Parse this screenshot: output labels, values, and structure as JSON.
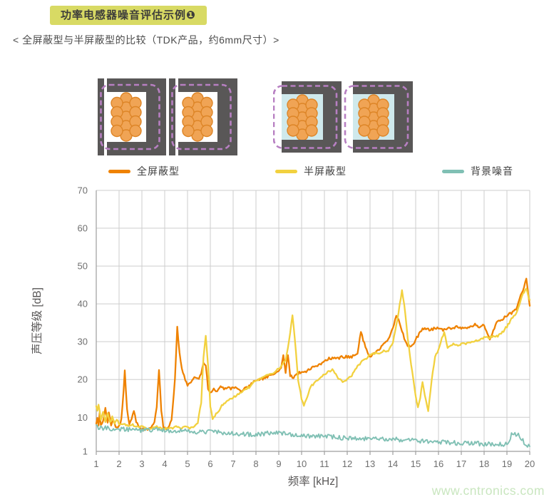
{
  "header": {
    "title": "功率电感器噪音评估示例❶",
    "subtitle": "< 全屏蔽型与半屏蔽型的比较（TDK产品，约6mm尺寸）>"
  },
  "colors": {
    "badge_bg": "#d8da64",
    "grid": "#cdcdcd",
    "axis": "#9e9e9e",
    "tick_text": "#6f6f6f",
    "axis_title_text": "#595757",
    "watermark": "#c9e6bf"
  },
  "diagram": {
    "core": "#595757",
    "coil_fill": "#f0a455",
    "coil_stroke": "#dd8527",
    "outline": "#b77fc2",
    "resin": "#cfe9ec"
  },
  "legend": {
    "items": [
      {
        "label": "全屏蔽型",
        "color": "#ef8200"
      },
      {
        "label": "半屏蔽型",
        "color": "#f2d13f"
      },
      {
        "label": "背景噪音",
        "color": "#80c0b4"
      }
    ]
  },
  "watermark": {
    "text": "www.cntronics.com"
  },
  "chart_data": {
    "type": "line",
    "title": "",
    "xlabel": "频率 [kHz]",
    "ylabel": "声压等级 [dB]",
    "xlim": [
      1,
      20
    ],
    "ylim": [
      1,
      70
    ],
    "x_ticks": [
      1,
      2,
      3,
      4,
      5,
      6,
      7,
      8,
      9,
      10,
      11,
      12,
      13,
      14,
      15,
      16,
      17,
      18,
      19,
      20
    ],
    "y_ticks": [
      1,
      10,
      20,
      30,
      40,
      50,
      60,
      70
    ],
    "grid": true,
    "legend_position": "top",
    "series": [
      {
        "name": "全屏蔽型",
        "color": "#ef8200",
        "width": 2.3,
        "jitter": 0.35,
        "points": [
          [
            1,
            8.5
          ],
          [
            1.05,
            9.5
          ],
          [
            1.1,
            8
          ],
          [
            1.15,
            11
          ],
          [
            1.2,
            8
          ],
          [
            1.3,
            9
          ],
          [
            1.4,
            12.5
          ],
          [
            1.5,
            8.5
          ],
          [
            1.55,
            11.5
          ],
          [
            1.65,
            8
          ],
          [
            1.75,
            9.5
          ],
          [
            1.85,
            7.5
          ],
          [
            2,
            7.5
          ],
          [
            2.1,
            9.5
          ],
          [
            2.2,
            17
          ],
          [
            2.25,
            22.5
          ],
          [
            2.35,
            12
          ],
          [
            2.45,
            8
          ],
          [
            2.55,
            9.5
          ],
          [
            2.65,
            12
          ],
          [
            2.75,
            8.5
          ],
          [
            2.9,
            7.5
          ],
          [
            3,
            7
          ],
          [
            3.2,
            6.8
          ],
          [
            3.4,
            7.5
          ],
          [
            3.55,
            9
          ],
          [
            3.65,
            13
          ],
          [
            3.75,
            22.5
          ],
          [
            3.85,
            12
          ],
          [
            3.95,
            7
          ],
          [
            4.1,
            7
          ],
          [
            4.3,
            9
          ],
          [
            4.45,
            20
          ],
          [
            4.55,
            34
          ],
          [
            4.65,
            27
          ],
          [
            4.75,
            23
          ],
          [
            4.85,
            21
          ],
          [
            5,
            18.5
          ],
          [
            5.15,
            19.5
          ],
          [
            5.3,
            20.5
          ],
          [
            5.45,
            20
          ],
          [
            5.6,
            21.5
          ],
          [
            5.7,
            24.5
          ],
          [
            5.8,
            24
          ],
          [
            5.9,
            17.5
          ],
          [
            6,
            16.5
          ],
          [
            6.15,
            17.5
          ],
          [
            6.3,
            17
          ],
          [
            6.45,
            18
          ],
          [
            6.6,
            17.5
          ],
          [
            6.75,
            18
          ],
          [
            6.9,
            17.5
          ],
          [
            7.05,
            18
          ],
          [
            7.2,
            17.5
          ],
          [
            7.35,
            17
          ],
          [
            7.5,
            17.5
          ],
          [
            7.65,
            18
          ],
          [
            7.8,
            19
          ],
          [
            8,
            19.5
          ],
          [
            8.2,
            20
          ],
          [
            8.4,
            20.5
          ],
          [
            8.6,
            21
          ],
          [
            8.8,
            21.5
          ],
          [
            9,
            22.5
          ],
          [
            9.1,
            23
          ],
          [
            9.2,
            26.5
          ],
          [
            9.3,
            22
          ],
          [
            9.4,
            26.5
          ],
          [
            9.5,
            21
          ],
          [
            9.65,
            20.5
          ],
          [
            9.8,
            21.5
          ],
          [
            10,
            22
          ],
          [
            10.2,
            22
          ],
          [
            10.4,
            23
          ],
          [
            10.6,
            23.5
          ],
          [
            10.8,
            24
          ],
          [
            11,
            25
          ],
          [
            11.2,
            25.5
          ],
          [
            11.4,
            25.5
          ],
          [
            11.6,
            25.5
          ],
          [
            11.8,
            26
          ],
          [
            12,
            26
          ],
          [
            12.2,
            26
          ],
          [
            12.45,
            27
          ],
          [
            12.6,
            32.5
          ],
          [
            12.75,
            29.5
          ],
          [
            12.9,
            27
          ],
          [
            13.05,
            26
          ],
          [
            13.2,
            27
          ],
          [
            13.4,
            28
          ],
          [
            13.6,
            29.5
          ],
          [
            13.8,
            30.5
          ],
          [
            14,
            33.5
          ],
          [
            14.15,
            37
          ],
          [
            14.3,
            35
          ],
          [
            14.5,
            31
          ],
          [
            14.65,
            29
          ],
          [
            14.8,
            28.5
          ],
          [
            15,
            30.5
          ],
          [
            15.2,
            32.5
          ],
          [
            15.35,
            33.5
          ],
          [
            15.5,
            33.5
          ],
          [
            15.65,
            33
          ],
          [
            15.8,
            33.5
          ],
          [
            16,
            33.5
          ],
          [
            16.2,
            33
          ],
          [
            16.4,
            33.5
          ],
          [
            16.6,
            33.5
          ],
          [
            16.8,
            34
          ],
          [
            17,
            33.5
          ],
          [
            17.2,
            33.5
          ],
          [
            17.4,
            34
          ],
          [
            17.6,
            34.5
          ],
          [
            17.8,
            34
          ],
          [
            18,
            34.5
          ],
          [
            18.25,
            30.5
          ],
          [
            18.45,
            33.5
          ],
          [
            18.6,
            35.5
          ],
          [
            18.8,
            36
          ],
          [
            19,
            37
          ],
          [
            19.2,
            37.5
          ],
          [
            19.4,
            38.5
          ],
          [
            19.6,
            42
          ],
          [
            19.8,
            45.5
          ],
          [
            19.85,
            46.5
          ],
          [
            20,
            39.5
          ]
        ]
      },
      {
        "name": "半屏蔽型",
        "color": "#f2d13f",
        "width": 2.3,
        "jitter": 0.3,
        "points": [
          [
            1,
            13
          ],
          [
            1.05,
            11.5
          ],
          [
            1.1,
            13.5
          ],
          [
            1.2,
            9.5
          ],
          [
            1.3,
            11.5
          ],
          [
            1.4,
            9
          ],
          [
            1.5,
            11
          ],
          [
            1.6,
            8.5
          ],
          [
            1.7,
            10
          ],
          [
            1.8,
            8.5
          ],
          [
            1.9,
            9.5
          ],
          [
            2,
            8
          ],
          [
            2.2,
            8.5
          ],
          [
            2.4,
            7.5
          ],
          [
            2.6,
            8
          ],
          [
            2.8,
            7.5
          ],
          [
            3,
            7.5
          ],
          [
            3.3,
            7
          ],
          [
            3.6,
            7.5
          ],
          [
            3.9,
            7
          ],
          [
            4.2,
            7
          ],
          [
            4.5,
            7.5
          ],
          [
            4.7,
            7
          ],
          [
            4.9,
            7.5
          ],
          [
            5.1,
            7
          ],
          [
            5.3,
            7.5
          ],
          [
            5.45,
            8.5
          ],
          [
            5.6,
            14
          ],
          [
            5.7,
            26
          ],
          [
            5.8,
            31.5
          ],
          [
            5.9,
            24
          ],
          [
            6,
            13
          ],
          [
            6.1,
            9.5
          ],
          [
            6.2,
            10.5
          ],
          [
            6.35,
            11.5
          ],
          [
            6.5,
            13
          ],
          [
            6.7,
            14
          ],
          [
            6.9,
            15
          ],
          [
            7.1,
            15.5
          ],
          [
            7.3,
            16.5
          ],
          [
            7.5,
            17.5
          ],
          [
            7.7,
            18
          ],
          [
            7.9,
            19.5
          ],
          [
            8.1,
            20
          ],
          [
            8.3,
            20.5
          ],
          [
            8.5,
            21
          ],
          [
            8.7,
            21.5
          ],
          [
            8.9,
            22.5
          ],
          [
            9.1,
            23.5
          ],
          [
            9.3,
            25
          ],
          [
            9.45,
            30
          ],
          [
            9.6,
            37
          ],
          [
            9.7,
            31
          ],
          [
            9.85,
            20
          ],
          [
            10,
            15
          ],
          [
            10.1,
            13
          ],
          [
            10.25,
            15.5
          ],
          [
            10.4,
            18
          ],
          [
            10.6,
            19.5
          ],
          [
            10.8,
            20.5
          ],
          [
            11,
            21.5
          ],
          [
            11.2,
            22
          ],
          [
            11.35,
            22.5
          ],
          [
            11.5,
            21.5
          ],
          [
            11.65,
            20
          ],
          [
            11.8,
            19.5
          ],
          [
            12,
            20
          ],
          [
            12.2,
            21
          ],
          [
            12.4,
            23
          ],
          [
            12.6,
            24.5
          ],
          [
            12.8,
            25.5
          ],
          [
            13,
            26.5
          ],
          [
            13.2,
            27
          ],
          [
            13.4,
            27
          ],
          [
            13.6,
            27.5
          ],
          [
            13.8,
            27.5
          ],
          [
            14,
            29.5
          ],
          [
            14.2,
            36
          ],
          [
            14.4,
            43.5
          ],
          [
            14.5,
            40
          ],
          [
            14.65,
            31
          ],
          [
            14.8,
            24
          ],
          [
            15,
            15.5
          ],
          [
            15.1,
            12.5
          ],
          [
            15.2,
            15
          ],
          [
            15.3,
            19.5
          ],
          [
            15.4,
            16
          ],
          [
            15.55,
            11.5
          ],
          [
            15.7,
            20
          ],
          [
            15.85,
            26
          ],
          [
            16,
            28
          ],
          [
            16.15,
            31
          ],
          [
            16.25,
            32.5
          ],
          [
            16.4,
            28.5
          ],
          [
            16.55,
            29
          ],
          [
            16.7,
            29.5
          ],
          [
            16.85,
            29
          ],
          [
            17,
            29.5
          ],
          [
            17.2,
            29.5
          ],
          [
            17.4,
            30
          ],
          [
            17.6,
            30
          ],
          [
            17.8,
            30.5
          ],
          [
            18,
            31
          ],
          [
            18.2,
            31
          ],
          [
            18.4,
            31.5
          ],
          [
            18.6,
            31.5
          ],
          [
            18.8,
            32.5
          ],
          [
            19,
            34
          ],
          [
            19.2,
            36
          ],
          [
            19.4,
            37.5
          ],
          [
            19.55,
            40
          ],
          [
            19.7,
            42.5
          ],
          [
            19.85,
            44
          ],
          [
            20,
            41
          ]
        ]
      },
      {
        "name": "背景噪音",
        "color": "#80c0b4",
        "width": 1.9,
        "jitter": 0.6,
        "points": [
          [
            1,
            7.5
          ],
          [
            1.3,
            7.2
          ],
          [
            1.6,
            7
          ],
          [
            2,
            7
          ],
          [
            2.4,
            6.8
          ],
          [
            2.8,
            6.6
          ],
          [
            3.2,
            6.6
          ],
          [
            3.6,
            6.8
          ],
          [
            4,
            6.5
          ],
          [
            4.4,
            6.3
          ],
          [
            4.8,
            6.4
          ],
          [
            5.2,
            6.2
          ],
          [
            5.6,
            6.2
          ],
          [
            6,
            6.3
          ],
          [
            6.4,
            6
          ],
          [
            6.8,
            5.8
          ],
          [
            7.2,
            5.7
          ],
          [
            7.6,
            5.5
          ],
          [
            8,
            5.5
          ],
          [
            8.4,
            5.7
          ],
          [
            8.8,
            5.9
          ],
          [
            9.2,
            5.8
          ],
          [
            9.6,
            5.4
          ],
          [
            10,
            5.2
          ],
          [
            10.4,
            5.1
          ],
          [
            10.8,
            5
          ],
          [
            11.2,
            4.9
          ],
          [
            11.6,
            4.7
          ],
          [
            12,
            4.5
          ],
          [
            12.4,
            4.5
          ],
          [
            12.8,
            4.4
          ],
          [
            13.2,
            4.3
          ],
          [
            13.6,
            4.2
          ],
          [
            14,
            4.2
          ],
          [
            14.4,
            4
          ],
          [
            14.8,
            3.9
          ],
          [
            15.2,
            3.7
          ],
          [
            15.6,
            3.6
          ],
          [
            16,
            3.5
          ],
          [
            16.4,
            3.3
          ],
          [
            16.8,
            3.2
          ],
          [
            17.2,
            3.2
          ],
          [
            17.6,
            3.1
          ],
          [
            18,
            3
          ],
          [
            18.4,
            2.8
          ],
          [
            18.8,
            2.9
          ],
          [
            19.1,
            3.2
          ],
          [
            19.2,
            6
          ],
          [
            19.3,
            5.3
          ],
          [
            19.45,
            5.6
          ],
          [
            19.6,
            4.5
          ],
          [
            19.8,
            3
          ],
          [
            20,
            2.3
          ]
        ]
      }
    ]
  }
}
